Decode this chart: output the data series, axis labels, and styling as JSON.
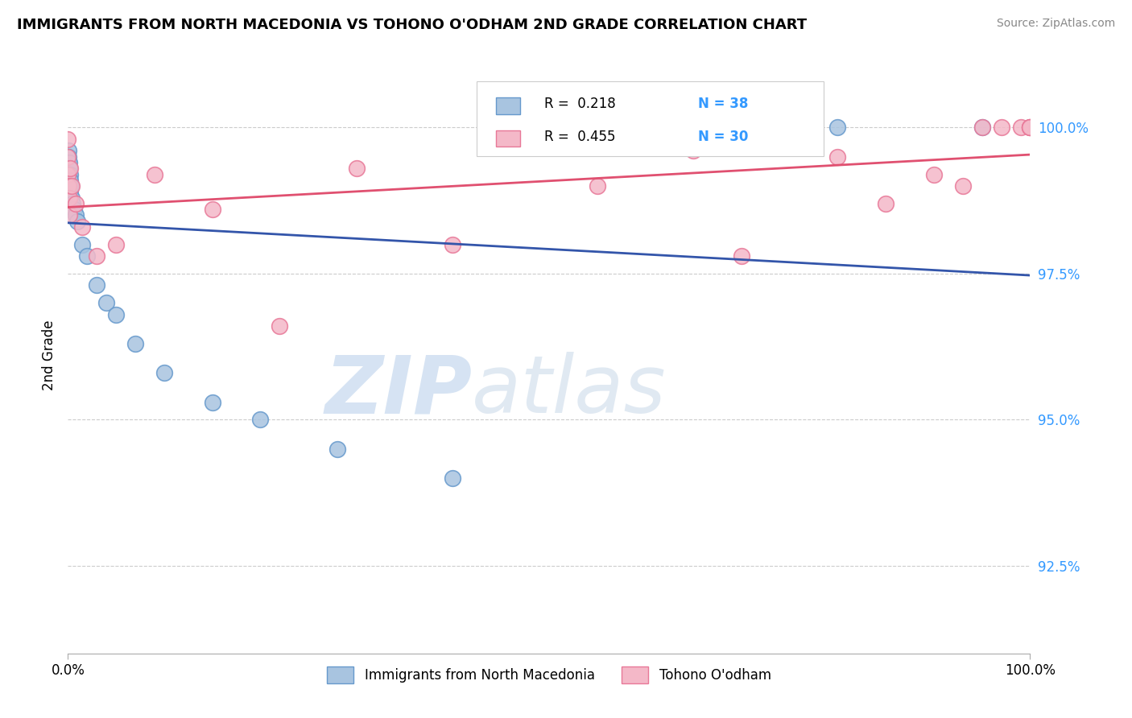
{
  "title": "IMMIGRANTS FROM NORTH MACEDONIA VS TOHONO O'ODHAM 2ND GRADE CORRELATION CHART",
  "source_text": "Source: ZipAtlas.com",
  "ylabel": "2nd Grade",
  "xlim": [
    0.0,
    100.0
  ],
  "ylim": [
    91.0,
    101.2
  ],
  "yticks": [
    92.5,
    95.0,
    97.5,
    100.0
  ],
  "ytick_labels": [
    "92.5%",
    "95.0%",
    "97.5%",
    "100.0%"
  ],
  "xticks": [
    0.0,
    100.0
  ],
  "xtick_labels": [
    "0.0%",
    "100.0%"
  ],
  "blue_color": "#a8c4e0",
  "pink_color": "#f4b8c8",
  "blue_edge": "#6699cc",
  "pink_edge": "#e87898",
  "trend_blue": "#3355aa",
  "trend_pink": "#e05070",
  "blue_scatter_x": [
    0.0,
    0.0,
    0.0,
    0.0,
    0.0,
    0.0,
    0.0,
    0.05,
    0.05,
    0.05,
    0.08,
    0.08,
    0.1,
    0.1,
    0.15,
    0.15,
    0.2,
    0.2,
    0.25,
    0.3,
    0.4,
    0.5,
    0.6,
    0.8,
    1.0,
    1.5,
    2.0,
    3.0,
    4.0,
    5.0,
    7.0,
    10.0,
    15.0,
    20.0,
    28.0,
    40.0,
    80.0,
    95.0
  ],
  "blue_scatter_y": [
    99.5,
    99.4,
    99.3,
    99.2,
    99.1,
    99.0,
    98.9,
    99.6,
    99.4,
    99.2,
    99.5,
    99.3,
    99.4,
    99.1,
    99.3,
    99.0,
    99.2,
    98.9,
    99.1,
    99.0,
    98.8,
    98.7,
    98.6,
    98.5,
    98.4,
    98.0,
    97.8,
    97.3,
    97.0,
    96.8,
    96.3,
    95.8,
    95.3,
    95.0,
    94.5,
    94.0,
    100.0,
    100.0
  ],
  "pink_scatter_x": [
    0.0,
    0.0,
    0.0,
    0.05,
    0.1,
    0.15,
    0.2,
    0.4,
    0.8,
    1.5,
    3.0,
    5.0,
    9.0,
    15.0,
    22.0,
    30.0,
    40.0,
    55.0,
    65.0,
    70.0,
    80.0,
    85.0,
    90.0,
    93.0,
    95.0,
    97.0,
    99.0,
    100.0,
    100.0,
    100.0
  ],
  "pink_scatter_y": [
    99.8,
    99.5,
    99.2,
    99.0,
    98.8,
    98.5,
    99.3,
    99.0,
    98.7,
    98.3,
    97.8,
    98.0,
    99.2,
    98.6,
    96.6,
    99.3,
    98.0,
    99.0,
    99.6,
    97.8,
    99.5,
    98.7,
    99.2,
    99.0,
    100.0,
    100.0,
    100.0,
    100.0,
    100.0,
    100.0
  ]
}
